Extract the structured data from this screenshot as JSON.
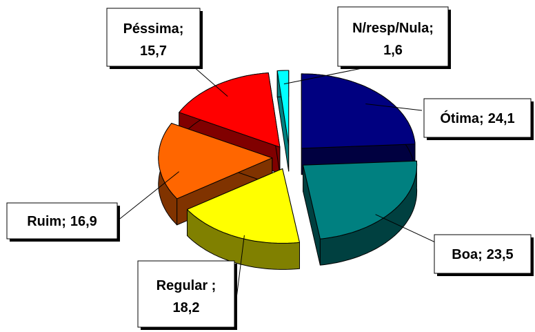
{
  "chart_data": {
    "type": "pie",
    "categories": [
      "Ótima;",
      "Boa;",
      "Regular ;",
      "Ruim;",
      "Péssima;",
      "N/resp/Nula;"
    ],
    "values": [
      24.1,
      23.5,
      18.2,
      16.9,
      15.7,
      1.6
    ],
    "value_labels": [
      "24,1",
      "23,5",
      "18,2",
      "16,9",
      "15,7",
      "1,6"
    ],
    "colors": [
      "#000080",
      "#008080",
      "#ffff00",
      "#ff6600",
      "#ff0000",
      "#00ffff"
    ]
  }
}
